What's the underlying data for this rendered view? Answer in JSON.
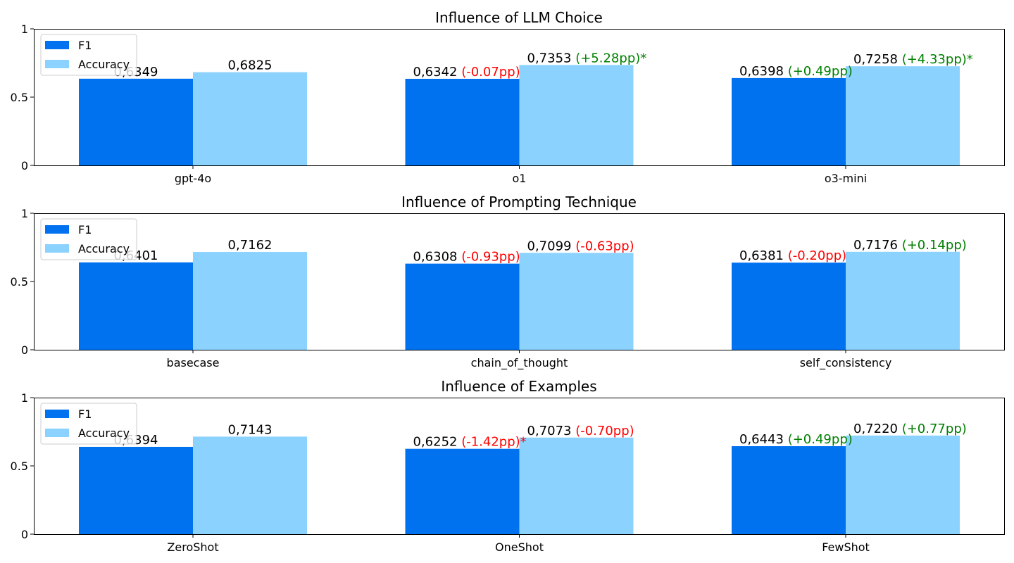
{
  "colors": {
    "f1": "#0072F0",
    "accuracy": "#8CD2FF",
    "positive": "#008000",
    "negative": "#FF0000",
    "text": "#000000"
  },
  "chart_data": [
    {
      "type": "bar",
      "title": "Influence of LLM Choice",
      "xlabel": "",
      "ylabel": "",
      "ylim": [
        0,
        1
      ],
      "yticks": [
        0,
        0.5,
        1
      ],
      "ytick_labels": [
        "0",
        "0.5",
        "1"
      ],
      "grid": false,
      "legend": "top-left",
      "categories": [
        "gpt-4o",
        "o1",
        "o3-mini"
      ],
      "series": [
        {
          "name": "F1",
          "values": [
            0.6349,
            0.6342,
            0.6398
          ],
          "labels": [
            "0,6349",
            "0,6342",
            "0,6398"
          ],
          "deltas": [
            "",
            "(-0.07pp)",
            "(+0.49pp)"
          ]
        },
        {
          "name": "Accuracy",
          "values": [
            0.6825,
            0.7353,
            0.7258
          ],
          "labels": [
            "0,6825",
            "0,7353",
            "0,7258"
          ],
          "deltas": [
            "",
            "(+5.28pp)*",
            "(+4.33pp)*"
          ]
        }
      ]
    },
    {
      "type": "bar",
      "title": "Influence of Prompting Technique",
      "xlabel": "",
      "ylabel": "",
      "ylim": [
        0,
        1
      ],
      "yticks": [
        0,
        0.5,
        1
      ],
      "ytick_labels": [
        "0",
        "0.5",
        "1"
      ],
      "grid": false,
      "legend": "top-left",
      "categories": [
        "basecase",
        "chain_of_thought",
        "self_consistency"
      ],
      "series": [
        {
          "name": "F1",
          "values": [
            0.6401,
            0.6308,
            0.6381
          ],
          "labels": [
            "0,6401",
            "0,6308",
            "0,6381"
          ],
          "deltas": [
            "",
            "(-0.93pp)",
            "(-0.20pp)"
          ]
        },
        {
          "name": "Accuracy",
          "values": [
            0.7162,
            0.7099,
            0.7176
          ],
          "labels": [
            "0,7162",
            "0,7099",
            "0,7176"
          ],
          "deltas": [
            "",
            "(-0.63pp)",
            "(+0.14pp)"
          ]
        }
      ]
    },
    {
      "type": "bar",
      "title": "Influence of Examples",
      "xlabel": "",
      "ylabel": "",
      "ylim": [
        0,
        1
      ],
      "yticks": [
        0,
        0.5,
        1
      ],
      "ytick_labels": [
        "0",
        "0.5",
        "1"
      ],
      "grid": false,
      "legend": "top-left",
      "categories": [
        "ZeroShot",
        "OneShot",
        "FewShot"
      ],
      "series": [
        {
          "name": "F1",
          "values": [
            0.6394,
            0.6252,
            0.6443
          ],
          "labels": [
            "0,6394",
            "0,6252",
            "0,6443"
          ],
          "deltas": [
            "",
            "(-1.42pp)*",
            "(+0.49pp)"
          ]
        },
        {
          "name": "Accuracy",
          "values": [
            0.7143,
            0.7073,
            0.722
          ],
          "labels": [
            "0,7143",
            "0,7073",
            "0,7220"
          ],
          "deltas": [
            "",
            "(-0.70pp)",
            "(+0.77pp)"
          ]
        }
      ]
    }
  ]
}
